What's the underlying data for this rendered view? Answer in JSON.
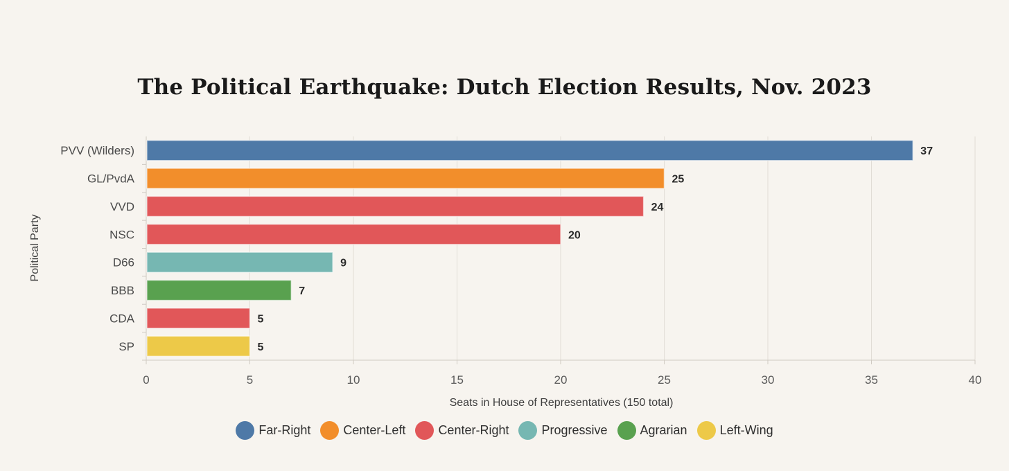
{
  "chart_data": {
    "type": "bar",
    "orientation": "horizontal",
    "title": "The Political Earthquake: Dutch Election Results, Nov. 2023",
    "xlabel": "Seats in House of Representatives (150 total)",
    "ylabel": "Political Party",
    "xlim": [
      0,
      40
    ],
    "xticks": [
      0,
      5,
      10,
      15,
      20,
      25,
      30,
      35,
      40
    ],
    "grid": true,
    "legend_placement": "bottom-center",
    "categories": [
      "PVV (Wilders)",
      "GL/PvdA",
      "VVD",
      "NSC",
      "D66",
      "BBB",
      "CDA",
      "SP"
    ],
    "values": [
      37,
      25,
      24,
      20,
      9,
      7,
      5,
      5
    ],
    "bar_groups": [
      "Far-Right",
      "Center-Left",
      "Center-Right",
      "Center-Right",
      "Progressive",
      "Agrarian",
      "Center-Right",
      "Left-Wing"
    ],
    "legend": [
      {
        "name": "Far-Right",
        "color": "#4e79a7"
      },
      {
        "name": "Center-Left",
        "color": "#f28e2b"
      },
      {
        "name": "Center-Right",
        "color": "#e15759"
      },
      {
        "name": "Progressive",
        "color": "#76b7b2"
      },
      {
        "name": "Agrarian",
        "color": "#59a14f"
      },
      {
        "name": "Left-Wing",
        "color": "#edc948"
      }
    ]
  }
}
